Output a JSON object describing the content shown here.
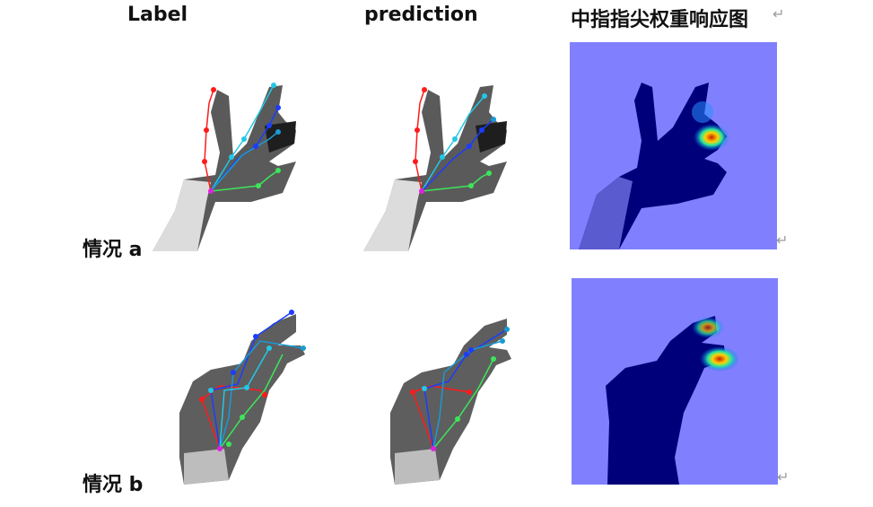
{
  "figure": {
    "columns": [
      {
        "label": "Label"
      },
      {
        "label": "prediction"
      },
      {
        "label": "中指指尖权重响应图"
      }
    ],
    "rows": [
      {
        "label": "情况 a"
      },
      {
        "label": "情况 b"
      }
    ],
    "return_mark": "↵",
    "colors": {
      "thumb": "#ff1a1a",
      "index": "#22c8e6",
      "middle": "#1c3cff",
      "ring": "#1a9ad4",
      "little": "#3ce65a",
      "wrist": "#e020e0",
      "heatmap_bg": "#8080ff",
      "heatmap_hand": "#00007a",
      "heatmap_peak": "#c81e00"
    }
  }
}
